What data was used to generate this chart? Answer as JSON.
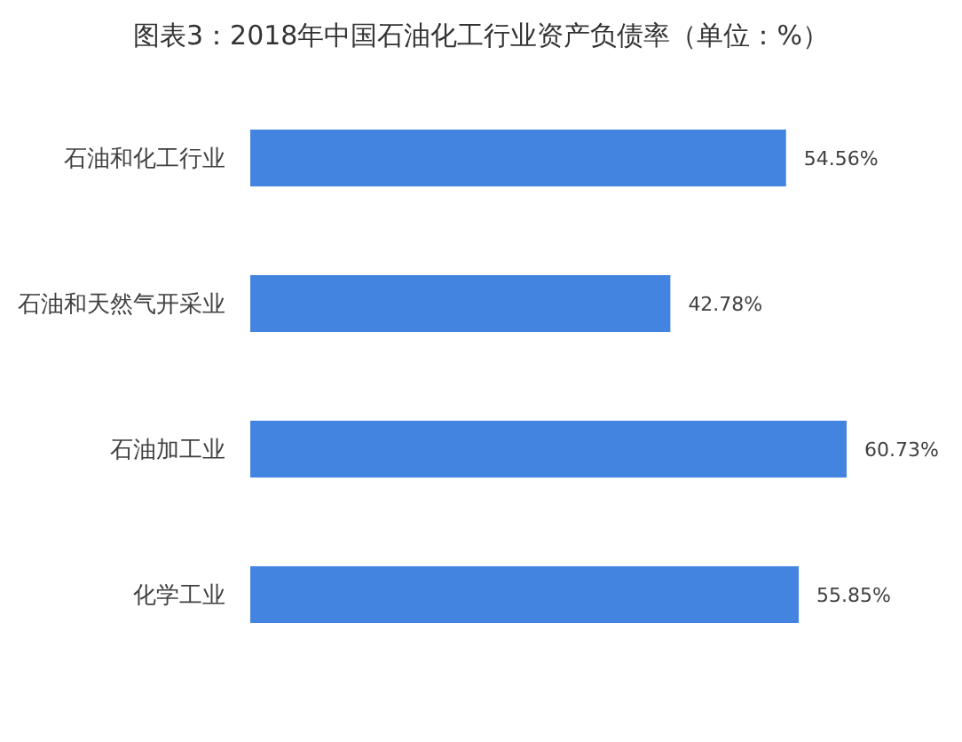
{
  "chart_data": {
    "type": "bar",
    "orientation": "horizontal",
    "title": "图表3：2018年中国石油化工行业资产负债率（单位：%）",
    "categories": [
      "石油和化工行业",
      "石油和天然气开采业",
      "石油加工业",
      "化学工业"
    ],
    "values": [
      54.56,
      42.78,
      60.73,
      55.85
    ],
    "color": "#4284e0",
    "value_labels": [
      "54.56%",
      "42.78%",
      "60.73%",
      "55.85%"
    ]
  }
}
